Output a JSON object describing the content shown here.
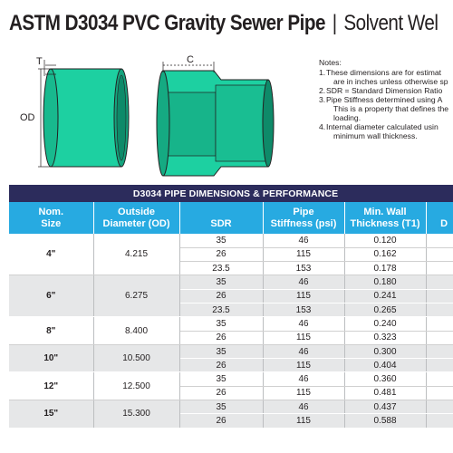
{
  "title": {
    "strong": "ASTM D3034 PVC Gravity Sewer Pipe",
    "separator": "|",
    "light": "Solvent Wel"
  },
  "diagram": {
    "t_label": "T",
    "od_label": "OD",
    "c_label": "C",
    "pipe_color": "#1dd0a1",
    "outline_color": "#231f20"
  },
  "notes": {
    "heading": "Notes:",
    "items": [
      {
        "num": "1.",
        "lines": [
          "These dimensions are for estimat",
          "are in inches unless otherwise sp"
        ]
      },
      {
        "num": "2.",
        "lines": [
          "SDR = Standard Dimension Ratio"
        ]
      },
      {
        "num": "3.",
        "lines": [
          "Pipe Stiffness determined using A",
          "This is a property that defines the",
          "loading."
        ]
      },
      {
        "num": "4.",
        "lines": [
          "Internal diameter calculated usin",
          "minimum wall thickness."
        ]
      }
    ]
  },
  "table": {
    "band": "D3034 PIPE DIMENSIONS & PERFORMANCE",
    "band_color": "#2c2c5c",
    "header_color": "#27aae1",
    "headers": [
      [
        "Nom.",
        "Size"
      ],
      [
        "Outside",
        "Diameter (OD)"
      ],
      [
        "",
        "SDR"
      ],
      [
        "Pipe",
        "Stiffness (psi)"
      ],
      [
        "Min. Wall",
        "Thickness (T1)"
      ],
      [
        "",
        "D"
      ]
    ],
    "groups": [
      {
        "size": "4\"",
        "od": "4.215",
        "rows": [
          [
            "35",
            "46",
            "0.120"
          ],
          [
            "26",
            "115",
            "0.162"
          ],
          [
            "23.5",
            "153",
            "0.178"
          ]
        ]
      },
      {
        "size": "6\"",
        "od": "6.275",
        "rows": [
          [
            "35",
            "46",
            "0.180"
          ],
          [
            "26",
            "115",
            "0.241"
          ],
          [
            "23.5",
            "153",
            "0.265"
          ]
        ]
      },
      {
        "size": "8\"",
        "od": "8.400",
        "rows": [
          [
            "35",
            "46",
            "0.240"
          ],
          [
            "26",
            "115",
            "0.323"
          ]
        ]
      },
      {
        "size": "10\"",
        "od": "10.500",
        "rows": [
          [
            "35",
            "46",
            "0.300"
          ],
          [
            "26",
            "115",
            "0.404"
          ]
        ]
      },
      {
        "size": "12\"",
        "od": "12.500",
        "rows": [
          [
            "35",
            "46",
            "0.360"
          ],
          [
            "26",
            "115",
            "0.481"
          ]
        ]
      },
      {
        "size": "15\"",
        "od": "15.300",
        "rows": [
          [
            "35",
            "46",
            "0.437"
          ],
          [
            "26",
            "115",
            "0.588"
          ]
        ]
      }
    ]
  }
}
